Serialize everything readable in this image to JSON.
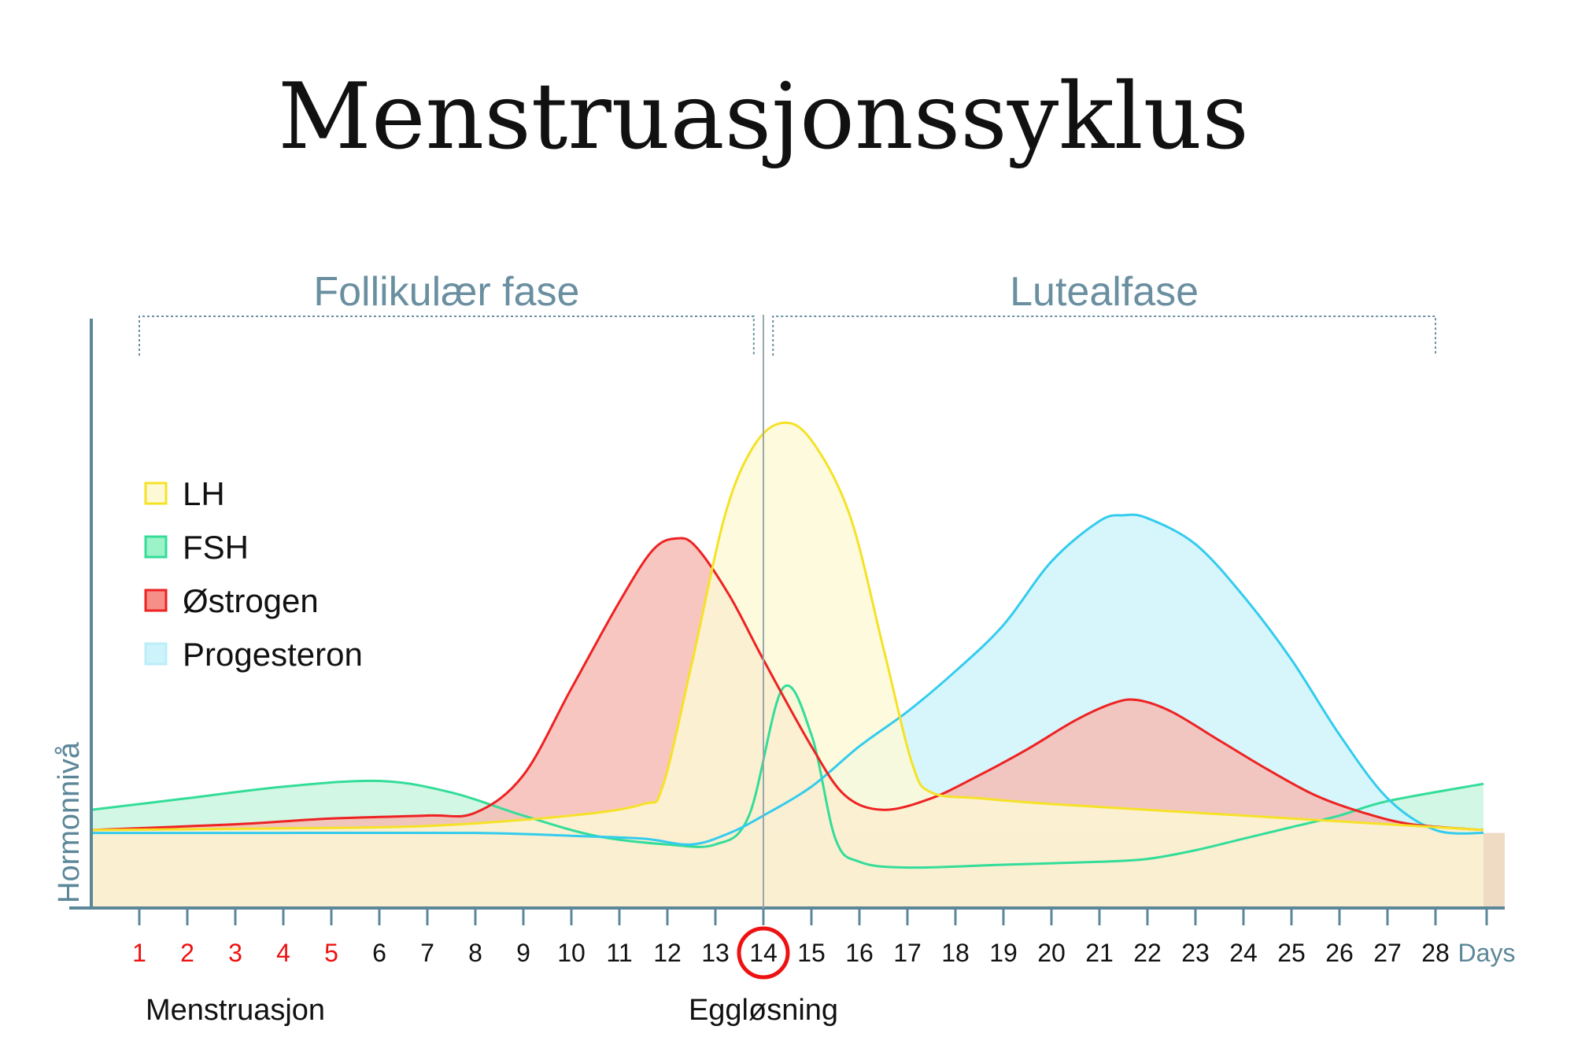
{
  "chart_data": {
    "type": "area",
    "title": "Menstruasjonssyklus",
    "xlabel": "Days",
    "ylabel": "Hormonnivå",
    "xlim": [
      0,
      29
    ],
    "ylim": [
      0,
      100
    ],
    "x_ticks": [
      "1",
      "2",
      "3",
      "4",
      "5",
      "6",
      "7",
      "8",
      "9",
      "10",
      "11",
      "12",
      "13",
      "14",
      "15",
      "16",
      "17",
      "18",
      "19",
      "20",
      "21",
      "22",
      "23",
      "24",
      "25",
      "26",
      "27",
      "28"
    ],
    "menstruation_days": [
      1,
      2,
      3,
      4,
      5
    ],
    "ovulation_day": 14,
    "phases": [
      {
        "label": "Follikulær fase",
        "start": 1,
        "end": 13.8
      },
      {
        "label": "Lutealfase",
        "start": 14.2,
        "end": 28
      }
    ],
    "annotations": [
      {
        "text": "Menstruasjon",
        "x": 3
      },
      {
        "text": "Eggløsning",
        "x": 14
      }
    ],
    "series": [
      {
        "name": "FSH",
        "color": "#33dd99",
        "fill": "#c8f5de",
        "points": [
          [
            0,
            17
          ],
          [
            2,
            19
          ],
          [
            4,
            21
          ],
          [
            6,
            22
          ],
          [
            7.5,
            20
          ],
          [
            9,
            16
          ],
          [
            10.5,
            12.5
          ],
          [
            12,
            11
          ],
          [
            13,
            11
          ],
          [
            13.7,
            16
          ],
          [
            14.4,
            38
          ],
          [
            15,
            30
          ],
          [
            15.5,
            12
          ],
          [
            16,
            8
          ],
          [
            17,
            7
          ],
          [
            19,
            7.5
          ],
          [
            21,
            8
          ],
          [
            22,
            8.5
          ],
          [
            23,
            10
          ],
          [
            24,
            12
          ],
          [
            25,
            14
          ],
          [
            26,
            16
          ],
          [
            27,
            18.5
          ],
          [
            29,
            21.5
          ]
        ]
      },
      {
        "name": "Progesteron",
        "color": "#33ccee",
        "fill": "#cdf4fb",
        "points": [
          [
            0,
            13
          ],
          [
            4,
            13
          ],
          [
            8,
            13
          ],
          [
            10,
            12.5
          ],
          [
            11.5,
            12
          ],
          [
            12.5,
            11
          ],
          [
            13.3,
            13
          ],
          [
            14,
            16
          ],
          [
            15,
            21
          ],
          [
            16,
            28
          ],
          [
            17,
            34
          ],
          [
            18,
            41
          ],
          [
            19,
            49
          ],
          [
            20,
            60
          ],
          [
            21,
            67
          ],
          [
            21.5,
            68
          ],
          [
            22,
            67.5
          ],
          [
            23,
            63
          ],
          [
            24,
            54
          ],
          [
            25,
            43
          ],
          [
            26,
            30
          ],
          [
            27,
            19
          ],
          [
            28,
            13.5
          ],
          [
            29,
            13
          ]
        ]
      },
      {
        "name": "Østrogen",
        "color": "#ee2222",
        "fill": "#f7b9b2",
        "points": [
          [
            0,
            13.5
          ],
          [
            3,
            14.5
          ],
          [
            5,
            15.5
          ],
          [
            7,
            16
          ],
          [
            8,
            16.5
          ],
          [
            9,
            23
          ],
          [
            10,
            38
          ],
          [
            11,
            53
          ],
          [
            11.7,
            62
          ],
          [
            12.2,
            64
          ],
          [
            12.6,
            62.5
          ],
          [
            13.3,
            54
          ],
          [
            14,
            43
          ],
          [
            15,
            28
          ],
          [
            15.7,
            19.5
          ],
          [
            16.5,
            17
          ],
          [
            17.5,
            19
          ],
          [
            18.5,
            23
          ],
          [
            19.5,
            27.5
          ],
          [
            20.5,
            32.5
          ],
          [
            21.3,
            35.5
          ],
          [
            21.8,
            36
          ],
          [
            22.5,
            34
          ],
          [
            23.5,
            29
          ],
          [
            24.5,
            24
          ],
          [
            25.5,
            19.5
          ],
          [
            26.5,
            16.5
          ],
          [
            27.5,
            14.5
          ],
          [
            29,
            13.5
          ]
        ]
      },
      {
        "name": "LH",
        "color": "#f5e227",
        "fill": "#fdf9d6",
        "points": [
          [
            0,
            13.5
          ],
          [
            4,
            13.8
          ],
          [
            7,
            14.2
          ],
          [
            10,
            16
          ],
          [
            11.5,
            18
          ],
          [
            11.9,
            21
          ],
          [
            12.5,
            42
          ],
          [
            13.2,
            68
          ],
          [
            13.8,
            80
          ],
          [
            14.4,
            84
          ],
          [
            15,
            81
          ],
          [
            15.8,
            68
          ],
          [
            16.5,
            45
          ],
          [
            17.1,
            25
          ],
          [
            17.5,
            20
          ],
          [
            18.5,
            19
          ],
          [
            20,
            18
          ],
          [
            22,
            17
          ],
          [
            24,
            16
          ],
          [
            26,
            15
          ],
          [
            28,
            14
          ],
          [
            29,
            13.5
          ]
        ]
      }
    ]
  },
  "legend": {
    "items": [
      {
        "label": "LH",
        "color": "#f5e227",
        "fill": "#fdf9d6"
      },
      {
        "label": "FSH",
        "color": "#33dd99",
        "fill": "#9df3c8"
      },
      {
        "label": "Østrogen",
        "color": "#ee2222",
        "fill": "#f58f88"
      },
      {
        "label": "Progesteron",
        "color": "#bbeef8",
        "fill": "#cdf4fb"
      }
    ]
  },
  "colors": {
    "axis": "#5c8799",
    "phase_text": "#6a8fa0",
    "bracket": "#6a8fa0",
    "base_fill": "#efdac4",
    "menstruation_day": "#ee1111",
    "ovulation_circle": "#ee1111"
  }
}
